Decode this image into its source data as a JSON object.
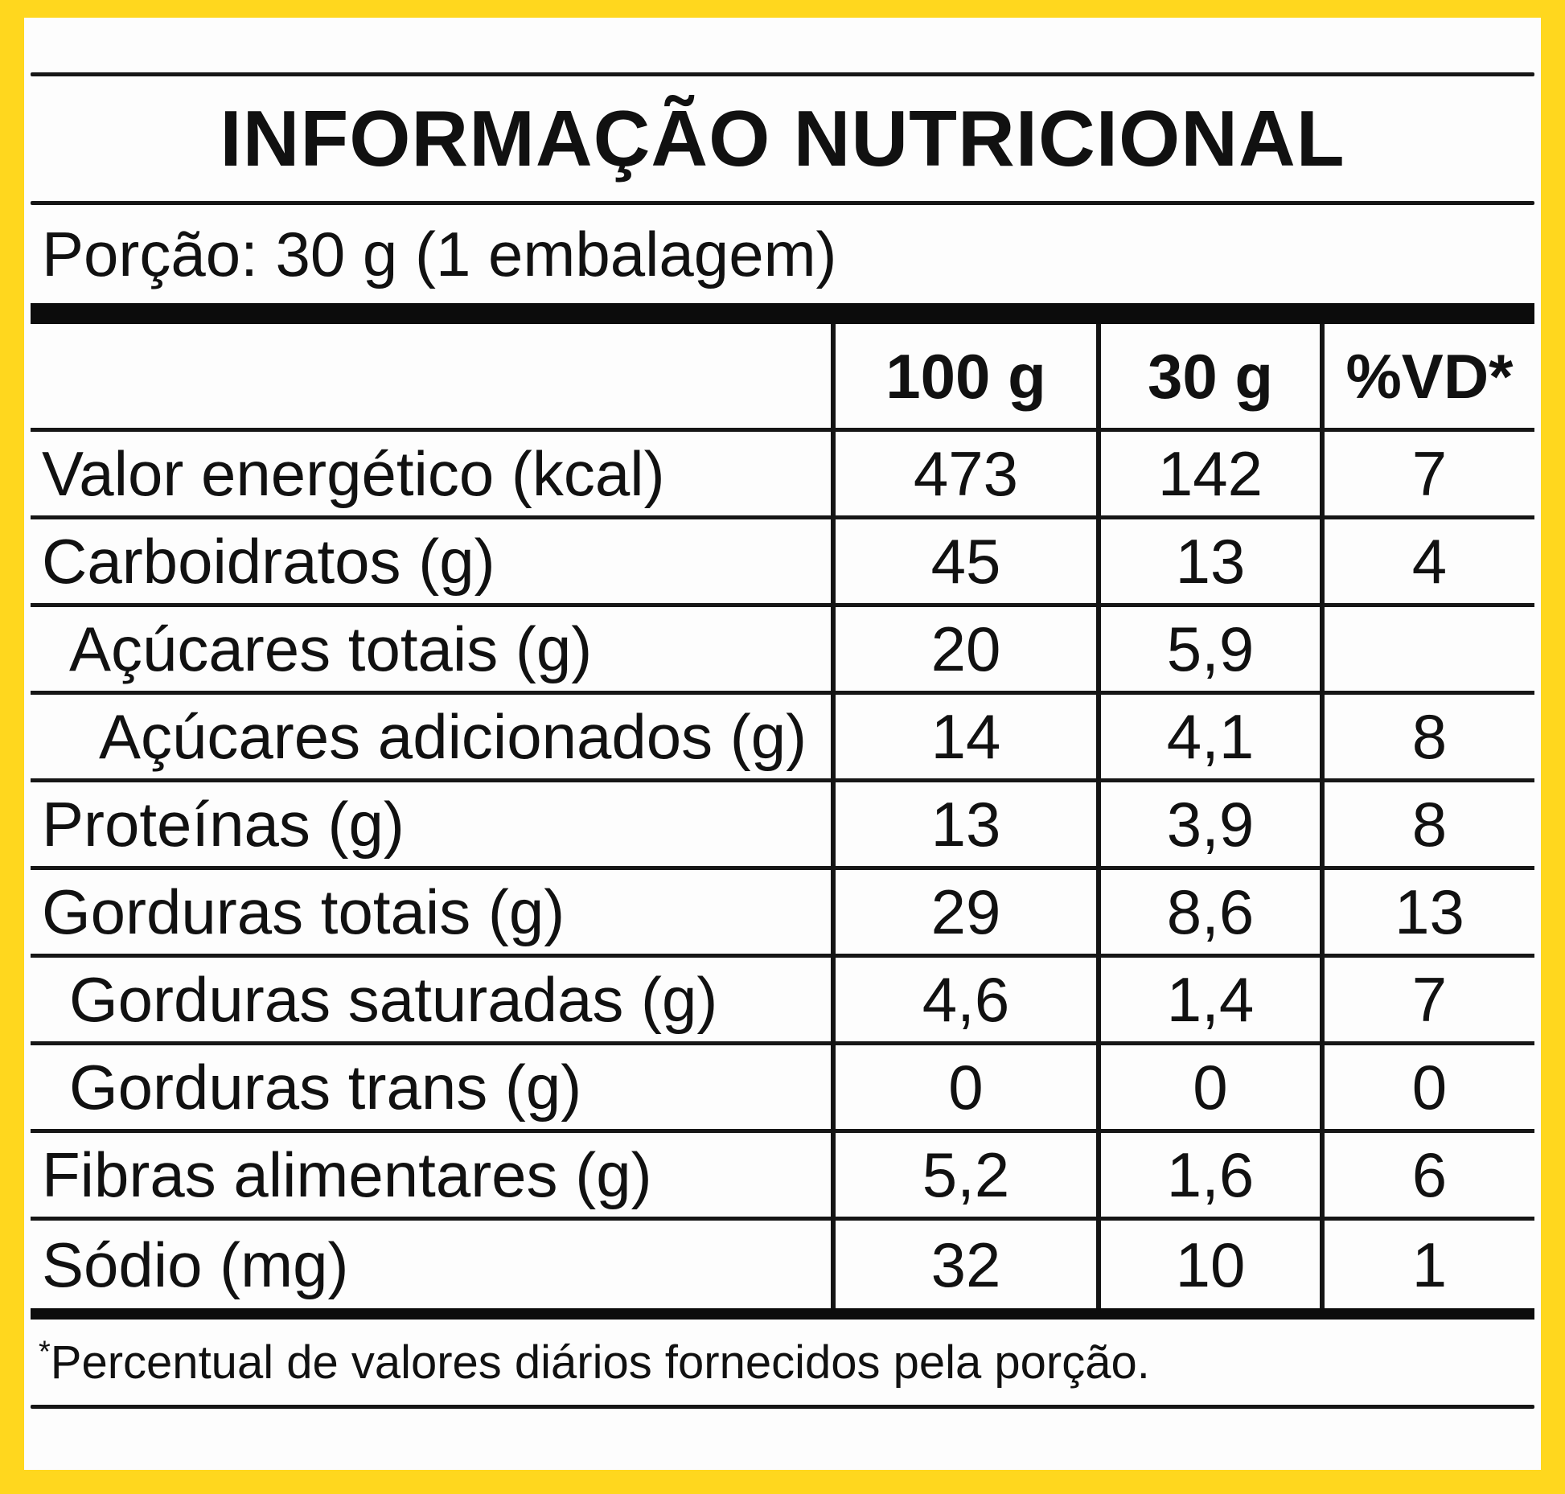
{
  "colors": {
    "frame_yellow": "#FFD71E",
    "ink_black": "#111111"
  },
  "title": "INFORMAÇÃO NUTRICIONAL",
  "serving": "Porção: 30 g (1 embalagem)",
  "table": {
    "col_headers": [
      "100 g",
      "30 g",
      "%VD*"
    ],
    "rows": [
      {
        "label": "Valor energético (kcal)",
        "per100": "473",
        "per30": "142",
        "vd": "7"
      },
      {
        "label": "Carboidratos (g)",
        "per100": "45",
        "per30": "13",
        "vd": "4"
      },
      {
        "label": "Açúcares totais (g)",
        "per100": "20",
        "per30": "5,9",
        "vd": ""
      },
      {
        "label": "Açúcares adicionados (g)",
        "per100": "14",
        "per30": "4,1",
        "vd": "8"
      },
      {
        "label": "Proteínas (g)",
        "per100": "13",
        "per30": "3,9",
        "vd": "8"
      },
      {
        "label": "Gorduras totais (g)",
        "per100": "29",
        "per30": "8,6",
        "vd": "13"
      },
      {
        "label": "Gorduras saturadas (g)",
        "per100": "4,6",
        "per30": "1,4",
        "vd": "7"
      },
      {
        "label": "Gorduras trans (g)",
        "per100": "0",
        "per30": "0",
        "vd": "0"
      },
      {
        "label": "Fibras alimentares (g)",
        "per100": "5,2",
        "per30": "1,6",
        "vd": "6"
      },
      {
        "label": "Sódio (mg)",
        "per100": "32",
        "per30": "10",
        "vd": "1"
      }
    ]
  },
  "footnote_marker": "*",
  "footnote_text": "Percentual de valores diários fornecidos pela porção."
}
